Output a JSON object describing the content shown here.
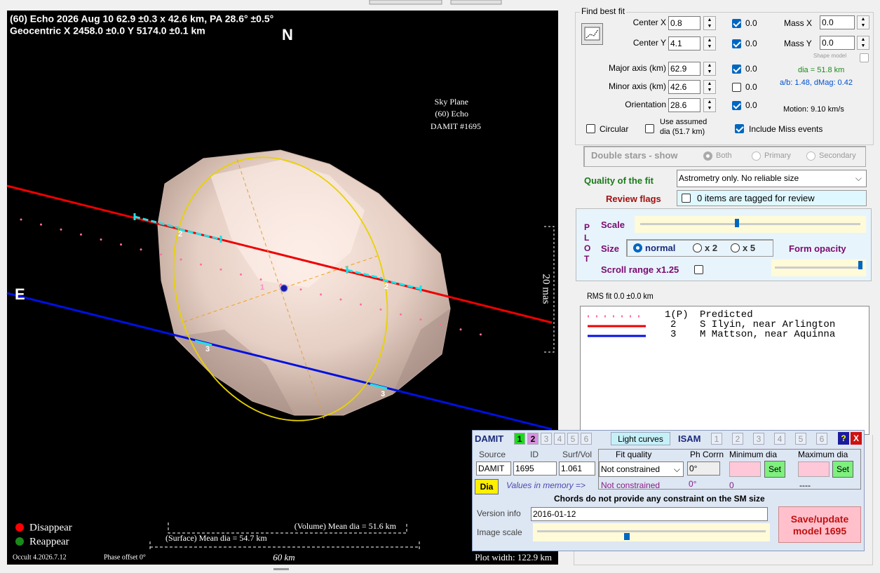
{
  "plot": {
    "title_line1": "(60) Echo 2026 Aug 10  62.9 ±0.3 x 42.6 km, PA 28.6° ±0.5°",
    "title_line2": "Geocentric X 2458.0 ±0.0 Y 5174.0 ±0.1 km",
    "north": "N",
    "east": "E",
    "sky_plane": [
      "Sky Plane",
      "(60) Echo",
      "DAMIT #1695"
    ],
    "chord_labels": [
      "2",
      "2",
      "3",
      "3",
      "1"
    ],
    "scale_label": "20 mas",
    "legend": [
      "Disappear",
      "Reappear"
    ],
    "volume_dia": "(Volume) Mean dia = 51.6 km",
    "surface_dia": "(Surface) Mean dia = 54.7 km",
    "version": "Occult 4.2026.7.12",
    "phase_offset": "Phase offset 0°",
    "scale_km": "60 km",
    "plot_width": "Plot width: 122.9 km"
  },
  "fit": {
    "title": "Find best fit",
    "fields": [
      {
        "label": "Center X",
        "value": "0.8",
        "step": "0.0",
        "checked": true
      },
      {
        "label": "Center Y",
        "value": "4.1",
        "step": "0.0",
        "checked": true
      },
      {
        "label": "Major axis (km)",
        "value": "62.9",
        "step": "0.0",
        "checked": true
      },
      {
        "label": "Minor axis (km)",
        "value": "42.6",
        "step": "0.0",
        "checked": false
      },
      {
        "label": "Orientation",
        "value": "28.6",
        "step": "0.0",
        "checked": true
      }
    ],
    "mass": [
      {
        "label": "Mass X",
        "value": "0.0"
      },
      {
        "label": "Mass Y",
        "value": "0.0"
      }
    ],
    "shape_model": "Shape model",
    "dia": "dia = 51.8 km",
    "ab": "a/b: 1.48, dMag: 0.42",
    "motion": "Motion: 9.10 km/s",
    "circular": {
      "label": "Circular",
      "checked": false
    },
    "use_assumed": {
      "label": [
        "Use assumed",
        "dia (51.7 km)"
      ],
      "checked": false
    },
    "include_miss": {
      "label": "Include Miss events",
      "checked": true
    }
  },
  "double_stars": {
    "label": "Double stars - show",
    "options": [
      {
        "label": "Both",
        "selected": true
      },
      {
        "label": "Primary",
        "selected": false
      },
      {
        "label": "Secondary",
        "selected": false
      }
    ]
  },
  "quality": {
    "label": "Quality of the fit",
    "value": "Astrometry only. No reliable size"
  },
  "review": {
    "label": "Review flags",
    "value": "0 items are tagged for review",
    "checked": false
  },
  "plot_settings": {
    "title": [
      "P",
      "L",
      "O",
      "T"
    ],
    "scale": "Scale",
    "size": "Size",
    "sizes": [
      {
        "label": "normal",
        "selected": true
      },
      {
        "label": "x 2",
        "selected": false
      },
      {
        "label": "x 5",
        "selected": false
      }
    ],
    "form_opacity": "Form opacity",
    "scroll_range": {
      "label": "Scroll range x1.25",
      "checked": false
    }
  },
  "rms": "RMS fit 0.0 ±0.0 km",
  "chords": [
    {
      "id": "1(P)",
      "name": "Predicted"
    },
    {
      "id": "2",
      "name": "S Ilyin, near Arlington"
    },
    {
      "id": "3",
      "name": "M Mattson, near Aquinna"
    }
  ],
  "damit": {
    "title": "DAMIT",
    "models": [
      "1",
      "2",
      "3",
      "4",
      "5",
      "6"
    ],
    "light_curves": "Light curves",
    "isam": "ISAM",
    "isam_models": [
      "1",
      "2",
      "3",
      "4",
      "5",
      "6"
    ],
    "help": "?",
    "close": "X",
    "headers": [
      "Source",
      "ID",
      "Surf/Vol",
      "Fit quality",
      "Ph Corrn",
      "Minimum dia",
      "Maximum dia"
    ],
    "source": "DAMIT",
    "id": "1695",
    "surf_vol": "1.061",
    "fit_quality": "Not constrained",
    "ph_corrn": "0°",
    "set": [
      "Set",
      "Set"
    ],
    "dia_button": "Dia",
    "values_in_memory": "Values in memory =>",
    "mem_fit_quality": "Not constrained",
    "mem_ph": "0°",
    "mem_min": "0",
    "mem_max": "----",
    "message": "Chords do not provide any constraint on the SM size",
    "version_label": "Version info",
    "version": "2016-01-12",
    "image_scale": "Image scale",
    "save": [
      "Save/update",
      "model 1695"
    ]
  }
}
